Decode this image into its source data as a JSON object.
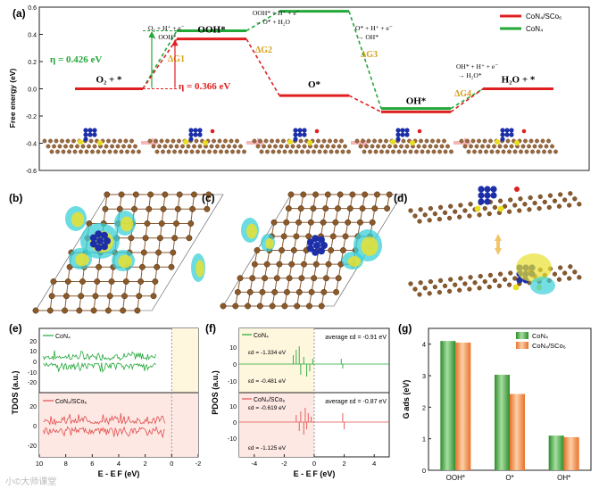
{
  "panels": {
    "a": "(a)",
    "b": "(b)",
    "c": "(c)",
    "d": "(d)",
    "e": "(e)",
    "f": "(f)",
    "g": "(g)"
  },
  "chart_data": [
    {
      "id": "a",
      "type": "line",
      "ylabel": "Free energy (eV)",
      "ylim": [
        -0.6,
        0.6
      ],
      "yticks": [
        "0.6",
        "0.4",
        "0.2",
        "0.0",
        "-0.2",
        "-0.4",
        "-0.6"
      ],
      "grid": false,
      "legend": "top-right",
      "steps": [
        "O2 + *",
        "OOH*",
        "O*",
        "OH*",
        "H2O + *"
      ],
      "step_labels": [
        "O₂ + *",
        "OOH*",
        "O*",
        "OH*",
        "H₂O + *"
      ],
      "series": [
        {
          "name": "CoN₄/SCo₆",
          "color": "#e02020",
          "values": [
            0,
            0.366,
            -0.05,
            -0.17,
            0
          ]
        },
        {
          "name": "CoN₄",
          "color": "#22a838",
          "values": [
            0,
            0.426,
            0.57,
            -0.145,
            0
          ]
        }
      ],
      "reactions": [
        {
          "line1": "O₂ + H⁺ + e⁻",
          "line2": "→ OOH*"
        },
        {
          "line1": "OOH* + H⁺ + e⁻",
          "line2": "→ O* + H₂O"
        },
        {
          "line1": "O* + H⁺ + e⁻",
          "line2": "→ OH*"
        },
        {
          "line1": "OH* + H⁺ + e⁻",
          "line2": "→ H₂O*"
        }
      ],
      "delta_labels": [
        "ΔG1",
        "ΔG2",
        "ΔG3",
        "ΔG4"
      ],
      "eta_green": "η = 0.426 eV",
      "eta_red": "η = 0.366 eV",
      "colors": {
        "accent_orange": "#d4a017",
        "red": "#e02020",
        "green": "#22a838"
      }
    },
    {
      "id": "e",
      "type": "line",
      "ylabel": "TDOS (a.u.)",
      "xlabel": "E - E_F (eV)",
      "xticks": [
        "10",
        "8",
        "6",
        "4",
        "2",
        "0",
        "-2"
      ],
      "top": {
        "name": "CoN₄",
        "color": "#22a838",
        "yticks": [
          "20",
          "10",
          "0",
          "-10",
          "-20"
        ]
      },
      "bottom": {
        "name": "CoN₄/SCo₆",
        "color": "#e05050",
        "yticks": [
          "20",
          "0",
          "-20"
        ]
      }
    },
    {
      "id": "f",
      "type": "line",
      "ylabel": "PDOS (a.u.)",
      "xlabel": "E - E_F (eV)",
      "xticks": [
        "-4",
        "-2",
        "0",
        "2",
        "4"
      ],
      "top": {
        "name": "CoN₄",
        "color": "#22a838",
        "yticks": [
          "10",
          "0",
          "-10"
        ],
        "avg": "average εd = -0.91 eV",
        "e_up": "εd = -1.334 eV",
        "e_down": "εd = -0.481 eV"
      },
      "bottom": {
        "name": "CoN₄/SCo₆",
        "color": "#e05050",
        "yticks": [
          "10",
          "0",
          "-10"
        ],
        "avg": "average εd = -0.87 eV",
        "e_up": "εd = -0.619 eV",
        "e_down": "εd = -1.125 eV"
      }
    },
    {
      "id": "g",
      "type": "bar",
      "ylabel": "G_ads (eV)",
      "ylim": [
        0,
        4.5
      ],
      "yticks": [
        "0",
        "1",
        "2",
        "3",
        "4"
      ],
      "categories": [
        "OOH*",
        "O*",
        "OH*"
      ],
      "legend": "top-right",
      "series": [
        {
          "name": "CoN₄",
          "color": "#4cb84c",
          "values": [
            4.1,
            3.03,
            1.1
          ]
        },
        {
          "name": "CoN₄/SCo₆",
          "color": "#f5934a",
          "values": [
            4.05,
            2.42,
            1.05
          ]
        }
      ]
    }
  ],
  "watermark": "小©大师课堂"
}
